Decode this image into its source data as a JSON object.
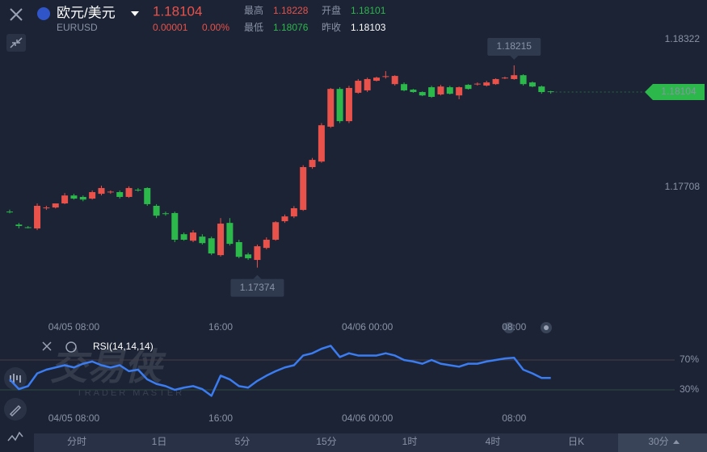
{
  "header": {
    "name": "欧元/美元",
    "symbol": "EURUSD",
    "price": "1.18104",
    "change": "0.00001",
    "change_pct": "0.00%",
    "stats": [
      {
        "label": "最高",
        "value": "1.18228"
      },
      {
        "label": "开盘",
        "value": "1.18101"
      },
      {
        "label": "最低",
        "value": "1.18076"
      },
      {
        "label": "昨收",
        "value": "1.18103"
      }
    ]
  },
  "watermark": {
    "title": "交易侠",
    "subtitle": "TRADER MASTER"
  },
  "tabs": [
    "分时",
    "1日",
    "5分",
    "15分",
    "1时",
    "4时",
    "日K",
    "30分"
  ],
  "chart_data": [
    {
      "type": "candlestick",
      "up_color": "#e8524a",
      "down_color": "#2cb84b",
      "categories": [
        null,
        null,
        null,
        null,
        null,
        null,
        null,
        "04/05 08:00",
        null,
        null,
        null,
        null,
        null,
        null,
        null,
        null,
        null,
        null,
        null,
        null,
        null,
        null,
        null,
        "16:00",
        null,
        null,
        null,
        null,
        null,
        null,
        null,
        null,
        null,
        null,
        null,
        null,
        null,
        null,
        null,
        "04/06 00:00",
        null,
        null,
        null,
        null,
        null,
        null,
        null,
        null,
        null,
        null,
        null,
        null,
        null,
        null,
        null,
        "08:00",
        null,
        null,
        null,
        null
      ],
      "open": [
        1.17607,
        1.17553,
        1.17542,
        1.17537,
        1.17621,
        1.17624,
        1.17641,
        1.17674,
        1.17668,
        1.17661,
        1.17681,
        1.17688,
        1.17688,
        1.17668,
        1.17698,
        1.17705,
        1.17631,
        1.176,
        1.17601,
        1.17513,
        1.17486,
        1.17503,
        1.17496,
        1.17426,
        1.1756,
        1.1748,
        1.17429,
        1.17406,
        1.17456,
        1.1749,
        1.17567,
        1.17587,
        1.17614,
        1.17792,
        1.17815,
        1.1796,
        1.18117,
        1.17983,
        1.18101,
        1.18111,
        1.18151,
        1.18168,
        1.18137,
        1.18137,
        1.18114,
        1.18104,
        1.18124,
        1.18094,
        1.18124,
        1.1809,
        1.18134,
        1.18137,
        1.18131,
        1.18137,
        1.18162,
        1.18158,
        1.18174,
        1.18144,
        1.18127,
        1.18107
      ],
      "high": [
        1.17615,
        1.1756,
        1.17547,
        1.17641,
        1.17631,
        1.17641,
        1.17684,
        1.17681,
        1.17674,
        1.17695,
        1.17715,
        1.17695,
        1.17695,
        1.17712,
        1.17705,
        1.17708,
        1.17638,
        1.17607,
        1.17607,
        1.1752,
        1.1753,
        1.17513,
        1.17503,
        1.1758,
        1.1758,
        1.1749,
        1.17436,
        1.1747,
        1.175,
        1.17567,
        1.17595,
        1.1763,
        1.178,
        1.1783,
        1.17975,
        1.18121,
        1.18124,
        1.1813,
        1.18158,
        1.18164,
        1.18168,
        1.18191,
        1.18174,
        1.18144,
        1.18117,
        1.18107,
        1.1813,
        1.18134,
        1.1813,
        1.18127,
        1.18137,
        1.18144,
        1.18151,
        1.18161,
        1.18168,
        1.18215,
        1.18178,
        1.18148,
        1.18131,
        1.18109
      ],
      "low": [
        1.176,
        1.17537,
        1.17537,
        1.1753,
        1.17614,
        1.1762,
        1.17638,
        1.17657,
        1.1765,
        1.17657,
        1.17674,
        1.17681,
        1.17661,
        1.17664,
        1.1769,
        1.17631,
        1.1758,
        1.1759,
        1.1748,
        1.17486,
        1.1748,
        1.1747,
        1.17426,
        1.1742,
        1.17466,
        1.17413,
        1.17406,
        1.17374,
        1.1745,
        1.17486,
        1.1756,
        1.1758,
        1.1761,
        1.17785,
        1.1781,
        1.17955,
        1.17975,
        1.17975,
        1.18097,
        1.18104,
        1.18148,
        1.1816,
        1.18131,
        1.18107,
        1.18101,
        1.18087,
        1.1808,
        1.1809,
        1.18094,
        1.18074,
        1.18114,
        1.18131,
        1.18127,
        1.18134,
        1.18158,
        1.18155,
        1.18131,
        1.18124,
        1.18097,
        1.18097
      ],
      "close": [
        1.17605,
        1.17547,
        1.1754,
        1.17631,
        1.17624,
        1.17641,
        1.17674,
        1.17661,
        1.17657,
        1.17688,
        1.17705,
        1.1769,
        1.17668,
        1.17705,
        1.17696,
        1.17638,
        1.1759,
        1.17597,
        1.1749,
        1.1749,
        1.1752,
        1.17476,
        1.17433,
        1.17557,
        1.17473,
        1.17419,
        1.17413,
        1.17463,
        1.1749,
        1.17563,
        1.17587,
        1.17621,
        1.17792,
        1.17822,
        1.17966,
        1.18117,
        1.17983,
        1.18121,
        1.18151,
        1.18158,
        1.18164,
        1.1817,
        1.18171,
        1.18111,
        1.18104,
        1.1809,
        1.18084,
        1.18127,
        1.18097,
        1.18124,
        1.18117,
        1.18139,
        1.18144,
        1.18158,
        1.18164,
        1.18174,
        1.18137,
        1.18127,
        1.18104,
        1.18104
      ],
      "ylim": [
        1.17178,
        1.18386
      ],
      "yticks": [
        1.18322,
        1.17708
      ],
      "annotations": {
        "high": 1.18215,
        "low": 1.17374,
        "last": 1.18104
      }
    },
    {
      "type": "line",
      "label": "RSI(14,14,14)",
      "color": "#3b7cf0",
      "categories": [
        null,
        null,
        null,
        null,
        null,
        null,
        null,
        "04/05 08:00",
        null,
        null,
        null,
        null,
        null,
        null,
        null,
        null,
        null,
        null,
        null,
        null,
        null,
        null,
        null,
        "16:00",
        null,
        null,
        null,
        null,
        null,
        null,
        null,
        null,
        null,
        null,
        null,
        null,
        null,
        null,
        null,
        "04/06 00:00",
        null,
        null,
        null,
        null,
        null,
        null,
        null,
        null,
        null,
        null,
        null,
        null,
        null,
        null,
        null,
        "08:00",
        null,
        null,
        null,
        null
      ],
      "values": [
        44,
        31,
        35,
        52,
        57,
        60,
        63,
        60,
        65,
        68,
        63,
        60,
        63,
        55,
        57,
        44,
        38,
        35,
        30,
        33,
        35,
        31,
        22,
        49,
        44,
        35,
        33,
        42,
        49,
        55,
        60,
        63,
        76,
        79,
        85,
        89,
        74,
        79,
        76,
        76,
        76,
        79,
        76,
        70,
        68,
        65,
        70,
        65,
        63,
        61,
        65,
        65,
        68,
        70,
        72,
        73,
        57,
        52,
        46,
        46
      ],
      "ylim": [
        0,
        100
      ],
      "yticks": [
        {
          "value": 70,
          "label": "70%"
        },
        {
          "value": 30,
          "label": "30%"
        }
      ]
    }
  ]
}
